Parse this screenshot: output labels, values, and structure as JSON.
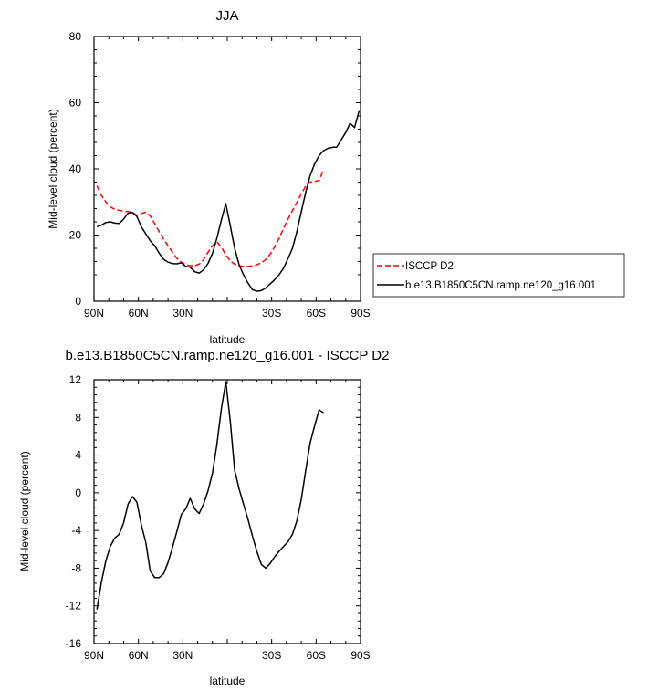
{
  "chart_data": [
    {
      "type": "line",
      "title": "JJA",
      "xlabel": "latitude",
      "ylabel": "Mid-level cloud (percent)",
      "xlim": [
        90,
        -90
      ],
      "ylim": [
        0,
        80
      ],
      "x_ticks": [
        90,
        60,
        30,
        0,
        -30,
        -60,
        -90
      ],
      "x_tick_labels": [
        "90N",
        "60N",
        "30N",
        "",
        "30S",
        "60S",
        "90S"
      ],
      "y_ticks": [
        0,
        20,
        40,
        60,
        80
      ],
      "y_tick_labels": [
        "0",
        "20",
        "40",
        "60",
        "80"
      ],
      "legend_position": "right",
      "series": [
        {
          "name": "ISCCP D2",
          "color": "#ff0000",
          "style": "dashed",
          "x": [
            88,
            85,
            82,
            79,
            76,
            73,
            70,
            67,
            64,
            61,
            58,
            55,
            52,
            49,
            46,
            43,
            40,
            37,
            34,
            31,
            28,
            25,
            22,
            19,
            16,
            13,
            10,
            7,
            4,
            1,
            -2,
            -5,
            -8,
            -11,
            -14,
            -17,
            -20,
            -23,
            -26,
            -29,
            -32,
            -35,
            -38,
            -41,
            -44,
            -47,
            -50,
            -53,
            -56,
            -59,
            -62,
            -65
          ],
          "y": [
            34.9,
            32,
            30,
            28.5,
            27.8,
            27.5,
            27.2,
            27.1,
            26.8,
            26,
            26.5,
            26.9,
            25.8,
            23.5,
            21,
            18.8,
            16.8,
            14.8,
            13,
            11.8,
            11,
            10.8,
            10.7,
            11.2,
            12.5,
            14.8,
            16.8,
            17.9,
            16.4,
            14,
            12.2,
            11.2,
            10.7,
            10.5,
            10.5,
            10.7,
            11,
            11.6,
            12.6,
            14.2,
            16.4,
            19,
            22,
            24.8,
            27.4,
            29.8,
            32.5,
            34.8,
            36,
            36.2,
            36.5,
            39.7
          ]
        },
        {
          "name": "b.e13.B1850C5CN.ramp.ne120_g16.001",
          "color": "#000000",
          "style": "solid",
          "x": [
            88,
            85,
            82,
            79,
            76,
            73,
            70,
            67,
            64,
            61,
            58,
            55,
            52,
            49,
            46,
            43,
            40,
            37,
            34,
            31,
            28,
            25,
            22,
            19,
            16,
            13,
            10,
            7,
            4,
            1,
            -2,
            -5,
            -8,
            -11,
            -14,
            -17,
            -20,
            -23,
            -26,
            -29,
            -32,
            -35,
            -38,
            -41,
            -44,
            -47,
            -50,
            -53,
            -56,
            -59,
            -62,
            -65,
            -68,
            -71,
            -74,
            -77,
            -80,
            -83,
            -86,
            -89
          ],
          "y": [
            22.5,
            23,
            23.8,
            24,
            23.6,
            23.5,
            24.8,
            26.6,
            26.8,
            25.6,
            22.5,
            20.3,
            18.3,
            16.8,
            14.5,
            12.7,
            11.8,
            11.4,
            11.3,
            11.6,
            10.5,
            10.3,
            8.9,
            8.5,
            9.5,
            11.4,
            14.5,
            19,
            24.5,
            29.5,
            23,
            16,
            11,
            8,
            5.5,
            3.5,
            3,
            3.2,
            4,
            5.2,
            6.5,
            8,
            10,
            12.8,
            16,
            21,
            27,
            33,
            38,
            41.5,
            44,
            45.5,
            46.2,
            46.5,
            46.6,
            48.8,
            51,
            53.8,
            52.5,
            57.5
          ]
        }
      ]
    },
    {
      "type": "line",
      "title": "b.e13.B1850C5CN.ramp.ne120_g16.001 - ISCCP D2",
      "xlabel": "latitude",
      "ylabel": "Mid-level cloud (percent)",
      "xlim": [
        90,
        -90
      ],
      "ylim": [
        -16,
        12
      ],
      "x_ticks": [
        90,
        60,
        30,
        0,
        -30,
        -60,
        -90
      ],
      "x_tick_labels": [
        "90N",
        "60N",
        "30N",
        "",
        "30S",
        "60S",
        "90S"
      ],
      "y_ticks": [
        -16,
        -12,
        -8,
        -4,
        0,
        4,
        8,
        12
      ],
      "y_tick_labels": [
        "-16",
        "-12",
        "-8",
        "-4",
        "0",
        "4",
        "8",
        "12"
      ],
      "series": [
        {
          "color": "#000000",
          "style": "solid",
          "x": [
            88,
            85,
            82,
            79,
            76,
            73,
            70,
            67,
            64,
            61,
            58,
            55,
            52,
            49,
            46,
            43,
            40,
            37,
            34,
            31,
            28,
            25,
            22,
            19,
            16,
            13,
            10,
            7,
            4,
            1,
            -2,
            -5,
            -8,
            -11,
            -14,
            -17,
            -20,
            -23,
            -26,
            -29,
            -32,
            -35,
            -38,
            -41,
            -44,
            -47,
            -50,
            -53,
            -56,
            -59,
            -62,
            -65
          ],
          "y": [
            -12.4,
            -9.5,
            -7.2,
            -5.7,
            -4.8,
            -4.4,
            -3.2,
            -1.2,
            -0.4,
            -1,
            -3.4,
            -5.3,
            -8.3,
            -9,
            -9,
            -8.6,
            -7.4,
            -5.8,
            -4.1,
            -2.3,
            -1.7,
            -0.6,
            -1.7,
            -2.2,
            -1.2,
            0.2,
            2.1,
            5.1,
            8.9,
            11.8,
            7.7,
            2.4,
            0.4,
            -1.2,
            -2.8,
            -4.6,
            -6.2,
            -7.6,
            -8,
            -7.5,
            -6.8,
            -6.2,
            -5.7,
            -5.2,
            -4.4,
            -3,
            -0.7,
            2.4,
            5.3,
            7.1,
            8.8,
            8.5
          ]
        }
      ]
    }
  ]
}
